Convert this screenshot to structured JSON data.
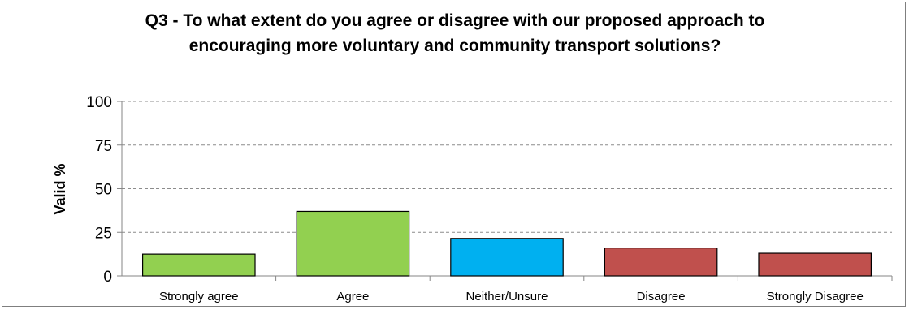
{
  "chart_data": {
    "type": "bar",
    "title": "Q3 - To what extent do you agree or disagree with our proposed approach to encouraging more voluntary and community transport solutions?",
    "xlabel": "",
    "ylabel": "Valid %",
    "ylim": [
      0,
      100
    ],
    "yticks": [
      "0",
      "25",
      "50",
      "75",
      "100"
    ],
    "grid": true,
    "categories": [
      "Strongly agree",
      "Agree",
      "Neither/Unsure",
      "Disagree",
      "Strongly Disagree"
    ],
    "values": [
      12.5,
      37,
      21.5,
      16,
      13
    ],
    "colors": [
      "#92d050",
      "#92d050",
      "#00b0f0",
      "#c0504d",
      "#c0504d"
    ]
  }
}
